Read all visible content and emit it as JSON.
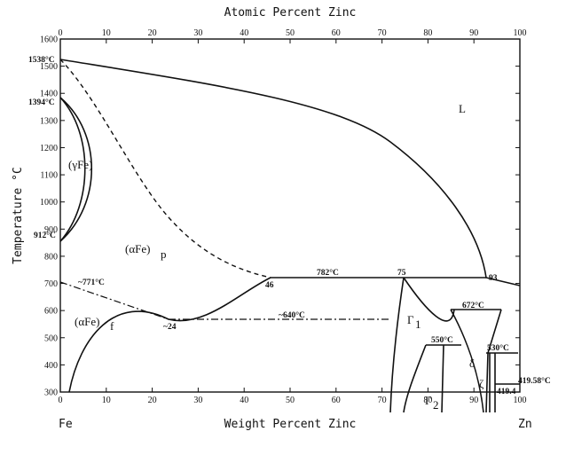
{
  "axes": {
    "x_bottom_title": "Weight Percent Zinc",
    "x_top_title": "Atomic Percent Zinc",
    "y_title": "Temperature °C",
    "x_ticks": [
      "0",
      "10",
      "20",
      "30",
      "40",
      "50",
      "60",
      "70",
      "80",
      "90",
      "100"
    ],
    "y_ticks": [
      "300",
      "400",
      "500",
      "600",
      "700",
      "800",
      "900",
      "1000",
      "1100",
      "1200",
      "1300",
      "1400",
      "1500",
      "1600"
    ],
    "xlim": [
      0,
      100
    ],
    "ylim": [
      300,
      1600
    ],
    "left_element": "Fe",
    "right_element": "Zn"
  },
  "phases": {
    "liquid": "L",
    "gamma_fe": "(γFe)",
    "alpha_fe_p": "(αFe)",
    "alpha_fe_p_sub": "p",
    "alpha_fe_f": "(αFe)",
    "alpha_fe_f_sub": "f",
    "gamma1": "Γ",
    "gamma1_sub": "1",
    "gamma2": "Γ",
    "gamma2_sub": "2",
    "delta": "δ",
    "zeta": "ζ"
  },
  "annotations": {
    "fe_melting": "1538°C",
    "gamma_top": "1394°C",
    "gamma_bottom": "912°C",
    "curie": "~771°C",
    "peritectic_782": "782°C",
    "comp_46": "46",
    "comp_75": "75",
    "comp_93": "93",
    "eutectoid_623": "~640°C",
    "comp_24": "~24",
    "peritectic_672": "672°C",
    "peritectic_550": "550°C",
    "peritectic_530": "530°C",
    "zn_eutectic": "419.58°C",
    "zn_eutectic_inner": "419.4"
  }
}
